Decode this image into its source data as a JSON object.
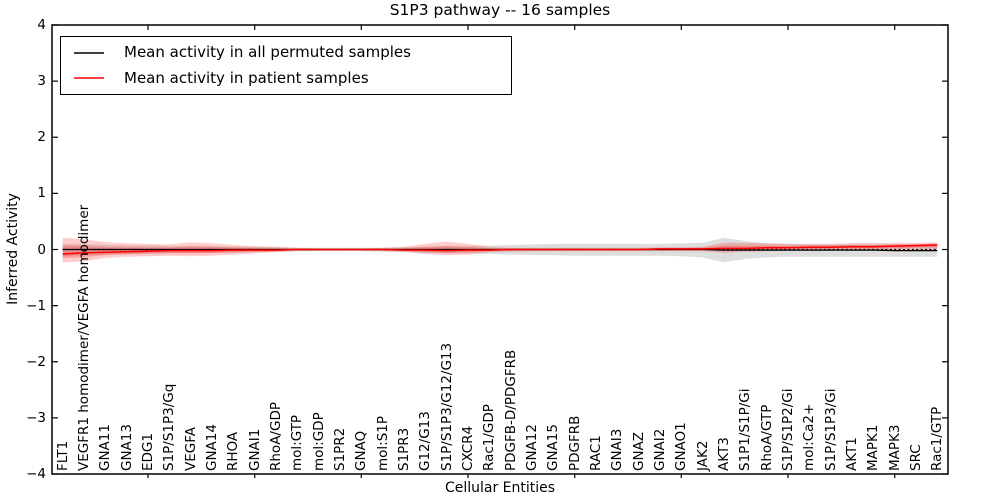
{
  "chart_data": {
    "type": "line",
    "title": "S1P3 pathway -- 16 samples",
    "xlabel": "Cellular Entities",
    "ylabel": "Inferred Activity",
    "ylim": [
      -4,
      4
    ],
    "ytick_labels": [
      "4",
      "3",
      "2",
      "1",
      "0",
      "−1",
      "−2",
      "−3",
      "−4"
    ],
    "grid": false,
    "legend_position": "upper left",
    "zero_reference_line": "dotted black at y=0",
    "categories": [
      "FLT1",
      "VEGFR1 homodimer/VEGFA homodimer",
      "GNA11",
      "GNA13",
      "EDG1",
      "S1P/S1P3/Gq",
      "VEGFA",
      "GNA14",
      "RHOA",
      "GNAI1",
      "RhoA/GDP",
      "mol:GTP",
      "mol:GDP",
      "S1PR2",
      "GNAQ",
      "mol:S1P",
      "S1PR3",
      "G12/G13",
      "S1P/S1P3/G12/G13",
      "CXCR4",
      "Rac1/GDP",
      "PDGFB-D/PDGFRB",
      "GNA12",
      "GNA15",
      "PDGFRB",
      "RAC1",
      "GNAI3",
      "GNAZ",
      "GNAI2",
      "GNAO1",
      "JAK2",
      "AKT3",
      "S1P1/S1P/Gi",
      "RhoA/GTP",
      "S1P/S1P2/Gi",
      "mol:Ca2+",
      "S1P/S1P3/Gi",
      "AKT1",
      "MAPK1",
      "MAPK3",
      "SRC",
      "Rac1/GTP"
    ],
    "series": [
      {
        "name": "Mean activity in all permuted samples",
        "color": "#000000",
        "band_fill_alpha": 0.13,
        "values": [
          0,
          0,
          0,
          0,
          0,
          0,
          0,
          0,
          0,
          0,
          0,
          0,
          0,
          0,
          0,
          0,
          0,
          0,
          0,
          0,
          0,
          0,
          0,
          0,
          0,
          0,
          0,
          0,
          0,
          0,
          0,
          -0.01,
          -0.01,
          -0.01,
          -0.01,
          -0.01,
          -0.01,
          -0.01,
          -0.01,
          -0.02,
          -0.02,
          -0.02
        ],
        "band_upper": [
          0.1,
          0.09,
          0.08,
          0.07,
          0.07,
          0.06,
          0.06,
          0.06,
          0.05,
          0.05,
          0.04,
          0.03,
          0.03,
          0.03,
          0.03,
          0.03,
          0.04,
          0.05,
          0.06,
          0.06,
          0.07,
          0.08,
          0.09,
          0.1,
          0.1,
          0.1,
          0.1,
          0.1,
          0.1,
          0.11,
          0.12,
          0.21,
          0.15,
          0.11,
          0.1,
          0.09,
          0.09,
          0.09,
          0.09,
          0.09,
          0.09,
          0.1
        ],
        "band_lower": [
          -0.12,
          -0.1,
          -0.09,
          -0.08,
          -0.07,
          -0.07,
          -0.06,
          -0.06,
          -0.06,
          -0.05,
          -0.04,
          -0.03,
          -0.03,
          -0.03,
          -0.03,
          -0.04,
          -0.05,
          -0.06,
          -0.07,
          -0.07,
          -0.08,
          -0.09,
          -0.1,
          -0.1,
          -0.11,
          -0.11,
          -0.11,
          -0.11,
          -0.11,
          -0.12,
          -0.14,
          -0.23,
          -0.17,
          -0.14,
          -0.13,
          -0.13,
          -0.13,
          -0.13,
          -0.13,
          -0.13,
          -0.13,
          -0.13
        ]
      },
      {
        "name": "Mean activity in patient samples",
        "color": "#ff0000",
        "band_fill_alpha": 0.2,
        "values": [
          -0.08,
          -0.06,
          -0.05,
          -0.04,
          -0.03,
          -0.02,
          -0.02,
          -0.02,
          -0.01,
          -0.01,
          -0.01,
          0,
          0,
          0,
          0,
          0,
          -0.01,
          -0.01,
          -0.02,
          -0.01,
          -0.01,
          0,
          0,
          0,
          0,
          0,
          0,
          0,
          0.01,
          0.01,
          0.01,
          0.02,
          0.02,
          0.03,
          0.03,
          0.04,
          0.04,
          0.05,
          0.05,
          0.06,
          0.07,
          0.08
        ],
        "band_upper": [
          0.21,
          0.18,
          0.13,
          0.11,
          0.1,
          0.09,
          0.13,
          0.11,
          0.08,
          0.06,
          0.05,
          0.03,
          0.02,
          0.02,
          0.02,
          0.03,
          0.05,
          0.1,
          0.14,
          0.1,
          0.05,
          0.03,
          0.03,
          0.03,
          0.03,
          0.03,
          0.03,
          0.03,
          0.04,
          0.04,
          0.05,
          0.12,
          0.12,
          0.11,
          0.1,
          0.1,
          0.1,
          0.11,
          0.11,
          0.12,
          0.12,
          0.13
        ],
        "band_lower": [
          -0.23,
          -0.21,
          -0.15,
          -0.13,
          -0.12,
          -0.11,
          -0.12,
          -0.11,
          -0.09,
          -0.07,
          -0.05,
          -0.03,
          -0.02,
          -0.02,
          -0.02,
          -0.03,
          -0.04,
          -0.08,
          -0.1,
          -0.09,
          -0.05,
          -0.04,
          -0.03,
          -0.03,
          -0.03,
          -0.03,
          -0.03,
          -0.03,
          -0.03,
          -0.03,
          -0.03,
          -0.06,
          -0.04,
          -0.03,
          -0.02,
          -0.02,
          -0.02,
          -0.01,
          -0.01,
          -0.01,
          0,
          0
        ]
      }
    ]
  }
}
